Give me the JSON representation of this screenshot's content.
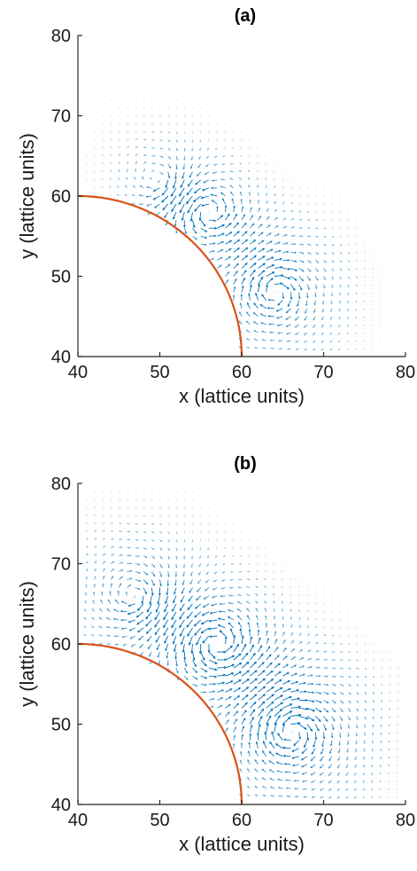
{
  "chart_data": [
    {
      "type": "quiver",
      "title": "(a)",
      "xlabel": "x (lattice units)",
      "ylabel": "y (lattice units)",
      "xlim": [
        40,
        80
      ],
      "ylim": [
        40,
        80
      ],
      "xticks": [
        40,
        50,
        60,
        70,
        80
      ],
      "yticks": [
        40,
        50,
        60,
        70,
        80
      ],
      "grid": false,
      "arrow_color": "#0072BD",
      "boundary": {
        "type": "quarter-circle",
        "center": [
          40,
          40
        ],
        "radius": 20,
        "color": "#D95319"
      },
      "field": {
        "spacing": 1,
        "vortices": [
          {
            "x": 56,
            "y": 58,
            "strength": 1.0
          },
          {
            "x": 64,
            "y": 48,
            "strength": -1.0
          },
          {
            "x": 50,
            "y": 62,
            "strength": -0.7
          }
        ],
        "decay": 6
      }
    },
    {
      "type": "quiver",
      "title": "(b)",
      "xlabel": "x (lattice units)",
      "ylabel": "y (lattice units)",
      "xlim": [
        40,
        80
      ],
      "ylim": [
        40,
        80
      ],
      "xticks": [
        40,
        50,
        60,
        70,
        80
      ],
      "yticks": [
        40,
        50,
        60,
        70,
        80
      ],
      "grid": false,
      "arrow_color": "#0072BD",
      "boundary": {
        "type": "quarter-circle",
        "center": [
          40,
          40
        ],
        "radius": 20,
        "color": "#D95319"
      },
      "field": {
        "spacing": 1,
        "vortices": [
          {
            "x": 57,
            "y": 60,
            "strength": 1.1
          },
          {
            "x": 66,
            "y": 49,
            "strength": -1.1
          },
          {
            "x": 47,
            "y": 66,
            "strength": -0.8
          }
        ],
        "decay": 7
      }
    }
  ]
}
